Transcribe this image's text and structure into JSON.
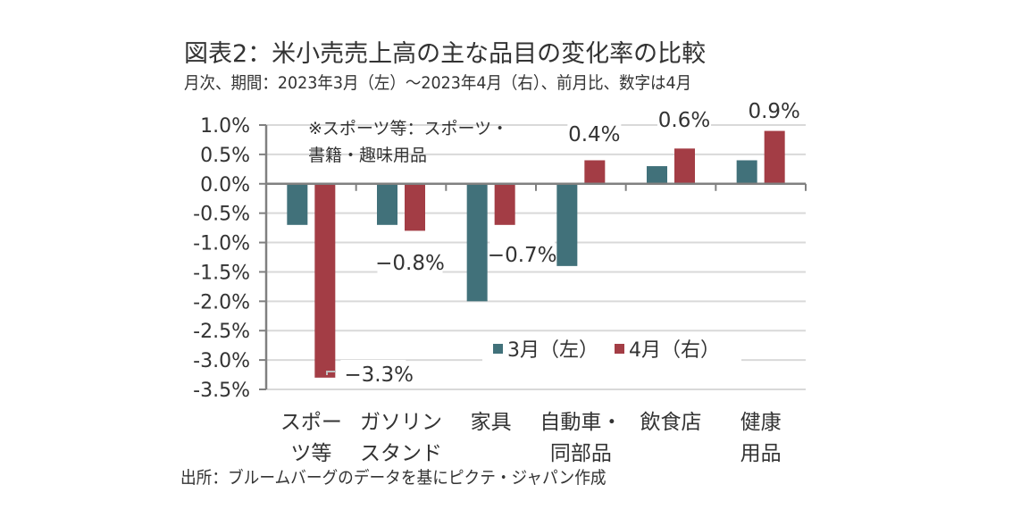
{
  "header": {
    "title": "図表2：米小売売上高の主な品目の変化率の比較",
    "subtitle": "月次、期間：2023年3月（左）～2023年4月（右）、前月比、数字は4月"
  },
  "footer": {
    "source": "出所：ブルームバーグのデータを基にピクテ・ジャパン作成"
  },
  "chart_data": {
    "type": "bar",
    "title": "図表2：米小売売上高の主な品目の変化率の比較",
    "subtitle": "月次、期間：2023年3月（左）～2023年4月（右）、前月比、数字は4月",
    "xlabel": "",
    "ylabel": "",
    "ylim": [
      -3.5,
      1.0
    ],
    "ytick_step": 0.5,
    "yticks": [
      "1.0%",
      "0.5%",
      "0.0%",
      "-0.5%",
      "-1.0%",
      "-1.5%",
      "-2.0%",
      "-2.5%",
      "-3.0%",
      "-3.5%"
    ],
    "grid": true,
    "categories": [
      [
        "スポー",
        "ツ等"
      ],
      [
        "ガソリン",
        "スタンド"
      ],
      [
        "家具"
      ],
      [
        "自動車・",
        "同部品"
      ],
      [
        "飲食店"
      ],
      [
        "健康",
        "用品"
      ]
    ],
    "series": [
      {
        "name": "3月（左）",
        "color": "#41717a",
        "values": [
          -0.7,
          -0.7,
          -2.0,
          -1.4,
          0.3,
          0.4
        ]
      },
      {
        "name": "4月（右）",
        "color": "#a33d45",
        "values": [
          -3.3,
          -0.8,
          -0.7,
          0.4,
          0.6,
          0.9
        ]
      }
    ],
    "data_labels": [
      "-3.3%",
      "-0.8%",
      "-0.7%",
      "0.4%",
      "0.6%",
      "0.9%"
    ],
    "annotation": [
      "※スポーツ等：スポーツ・",
      "書籍・趣味用品"
    ],
    "legend": {
      "placement": "bottom-right-inside",
      "entries": [
        "3月（左）",
        "4月（右）"
      ]
    }
  }
}
